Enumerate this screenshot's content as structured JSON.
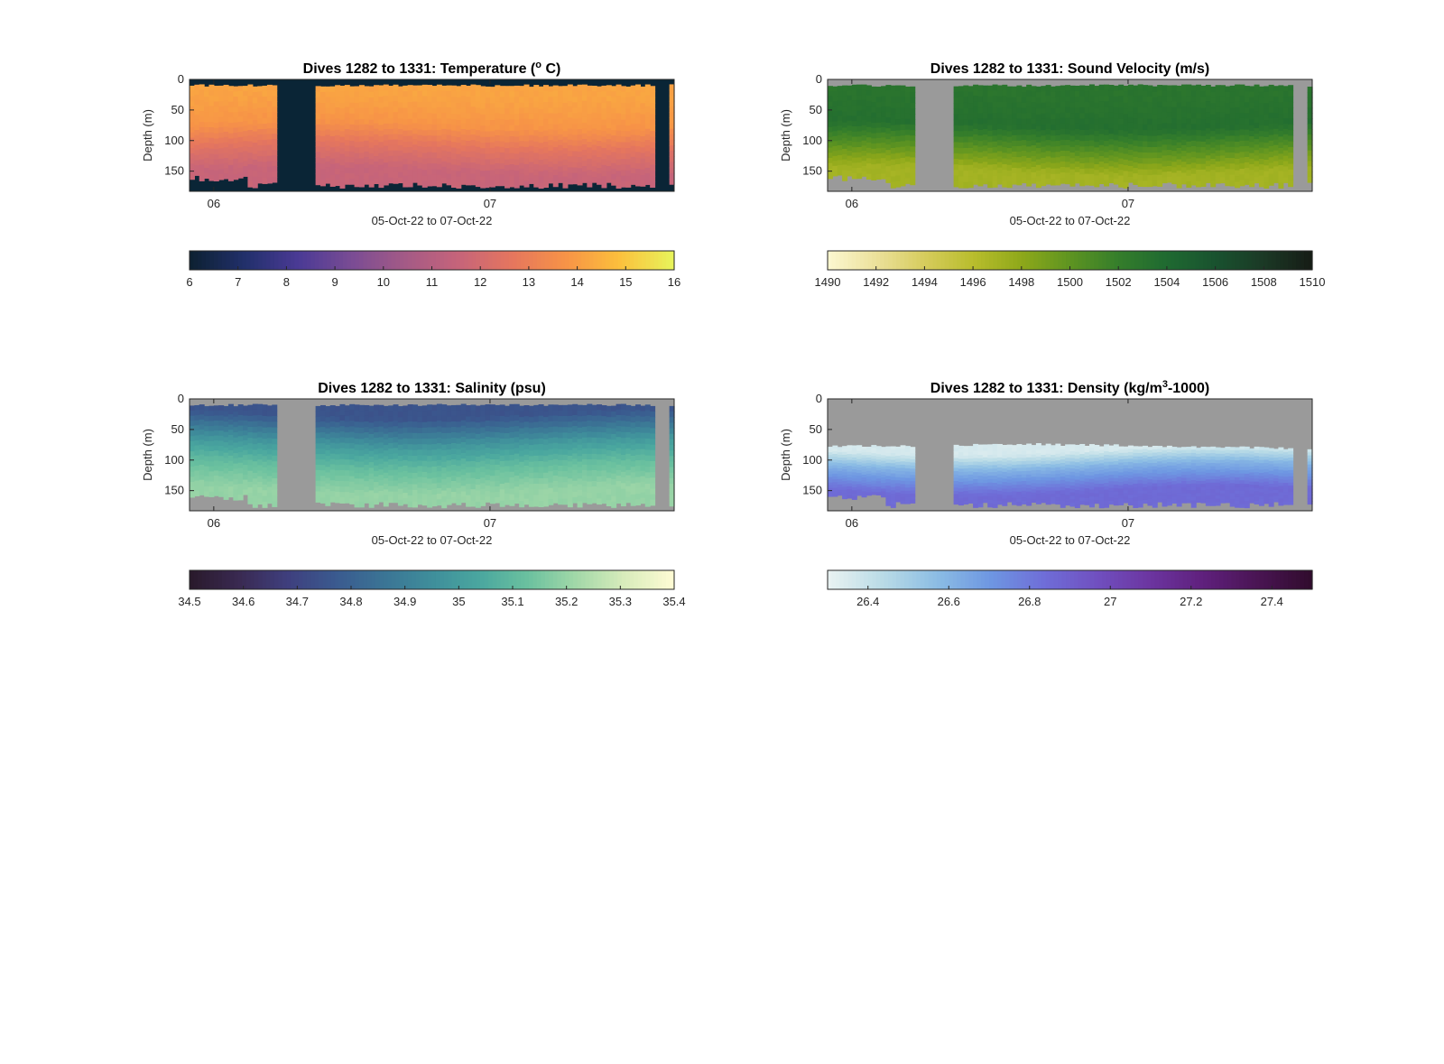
{
  "chart_data": [
    {
      "type": "heatmap",
      "title": "Dives 1282 to 1331: Temperature (° C)",
      "title_parts": [
        "Dives 1282 to 1331: Temperature (",
        "o",
        " C)"
      ],
      "title_sup_index": 1,
      "xlabel": "05-Oct-22 to 07-Oct-22",
      "ylabel": "Depth (m)",
      "x_ticks": [
        "06",
        "07"
      ],
      "y_ticks": [
        "0",
        "50",
        "100",
        "150"
      ],
      "ylim": [
        0,
        183
      ],
      "no_data_color": "#0a2536",
      "colormap": [
        "#0d2133",
        "#22306b",
        "#4a3a95",
        "#7a4c94",
        "#a45a86",
        "#c6647a",
        "#e5765e",
        "#f79347",
        "#fcbf3c",
        "#e8f35a"
      ],
      "colorbar": {
        "min": 6,
        "max": 16,
        "ticks": [
          "6",
          "7",
          "8",
          "9",
          "10",
          "11",
          "12",
          "13",
          "14",
          "15",
          "16"
        ]
      },
      "depth_layers_m": [
        25,
        75,
        110,
        150
      ],
      "layer_values": [
        14.2,
        13.8,
        12.6,
        11.6
      ],
      "data_gaps": [
        [
          0.18,
          0.26
        ],
        [
          0.965,
          0.985
        ]
      ]
    },
    {
      "type": "heatmap",
      "title": "Dives 1282 to 1331: Sound Velocity (m/s)",
      "title_parts": [
        "Dives 1282 to 1331: Sound Velocity (m/s)"
      ],
      "title_sup_index": -1,
      "xlabel": "05-Oct-22 to 07-Oct-22",
      "ylabel": "Depth (m)",
      "x_ticks": [
        "06",
        "07"
      ],
      "y_ticks": [
        "0",
        "50",
        "100",
        "150"
      ],
      "ylim": [
        0,
        183
      ],
      "no_data_color": "#9a9a9a",
      "colormap": [
        "#fbf7cf",
        "#ebe099",
        "#d6cc5c",
        "#b8bd2c",
        "#8ea81a",
        "#5e9421",
        "#357e2b",
        "#1f6a31",
        "#19532f",
        "#1b3a26",
        "#161d16"
      ],
      "colorbar": {
        "min": 1490,
        "max": 1510,
        "ticks": [
          "1490",
          "1492",
          "1494",
          "1496",
          "1498",
          "1500",
          "1502",
          "1504",
          "1506",
          "1508",
          "1510"
        ]
      },
      "depth_layers_m": [
        25,
        75,
        110,
        150
      ],
      "layer_values": [
        1503.0,
        1503.5,
        1500.5,
        1497.0
      ],
      "data_gaps": [
        [
          0.18,
          0.26
        ],
        [
          0.965,
          0.985
        ]
      ]
    },
    {
      "type": "heatmap",
      "title": "Dives 1282 to 1331: Salinity (psu)",
      "title_parts": [
        "Dives 1282 to 1331: Salinity (psu)"
      ],
      "title_sup_index": -1,
      "xlabel": "05-Oct-22 to 07-Oct-22",
      "ylabel": "Depth (m)",
      "x_ticks": [
        "06",
        "07"
      ],
      "y_ticks": [
        "0",
        "50",
        "100",
        "150"
      ],
      "ylim": [
        0,
        183
      ],
      "no_data_color": "#9a9a9a",
      "colormap": [
        "#2a1a2c",
        "#3a2a52",
        "#3f3f7e",
        "#3a5a8f",
        "#3b7495",
        "#3f8e9b",
        "#4aa79f",
        "#6bc19f",
        "#a2d8a8",
        "#d8ecbb",
        "#fdfbd3"
      ],
      "colorbar": {
        "min": 34.5,
        "max": 35.4,
        "ticks": [
          "34.5",
          "34.6",
          "34.7",
          "34.8",
          "34.9",
          "35",
          "35.1",
          "35.2",
          "35.3",
          "35.4"
        ]
      },
      "depth_layers_m": [
        25,
        75,
        110,
        150
      ],
      "layer_values": [
        34.75,
        35.0,
        35.12,
        35.2
      ],
      "data_gaps": [
        [
          0.18,
          0.26
        ],
        [
          0.965,
          0.985
        ]
      ]
    },
    {
      "type": "heatmap",
      "title": "Dives 1282 to 1331: Density (kg/m³-1000)",
      "title_parts": [
        "Dives 1282 to 1331: Density (kg/m",
        "3",
        "-1000)"
      ],
      "title_sup_index": 1,
      "xlabel": "05-Oct-22 to 07-Oct-22",
      "ylabel": "Depth (m)",
      "x_ticks": [
        "06",
        "07"
      ],
      "y_ticks": [
        "0",
        "50",
        "100",
        "150"
      ],
      "ylim": [
        0,
        183
      ],
      "no_data_color": "#9a9a9a",
      "colormap": [
        "#e8f2f2",
        "#b9dbe6",
        "#8cbde4",
        "#6e97e2",
        "#6f6ed8",
        "#7050c0",
        "#6c35a0",
        "#5f207c",
        "#4a1554",
        "#310c2e"
      ],
      "colorbar": {
        "min": 26.3,
        "max": 27.5,
        "ticks": [
          "26.4",
          "26.6",
          "26.8",
          "27",
          "27.2",
          "27.4"
        ]
      },
      "depth_layers_m": [
        85,
        110,
        150
      ],
      "layer_values": [
        26.35,
        26.6,
        26.85
      ],
      "data_gaps": [
        [
          0.18,
          0.26
        ],
        [
          0.965,
          0.985
        ]
      ]
    }
  ]
}
